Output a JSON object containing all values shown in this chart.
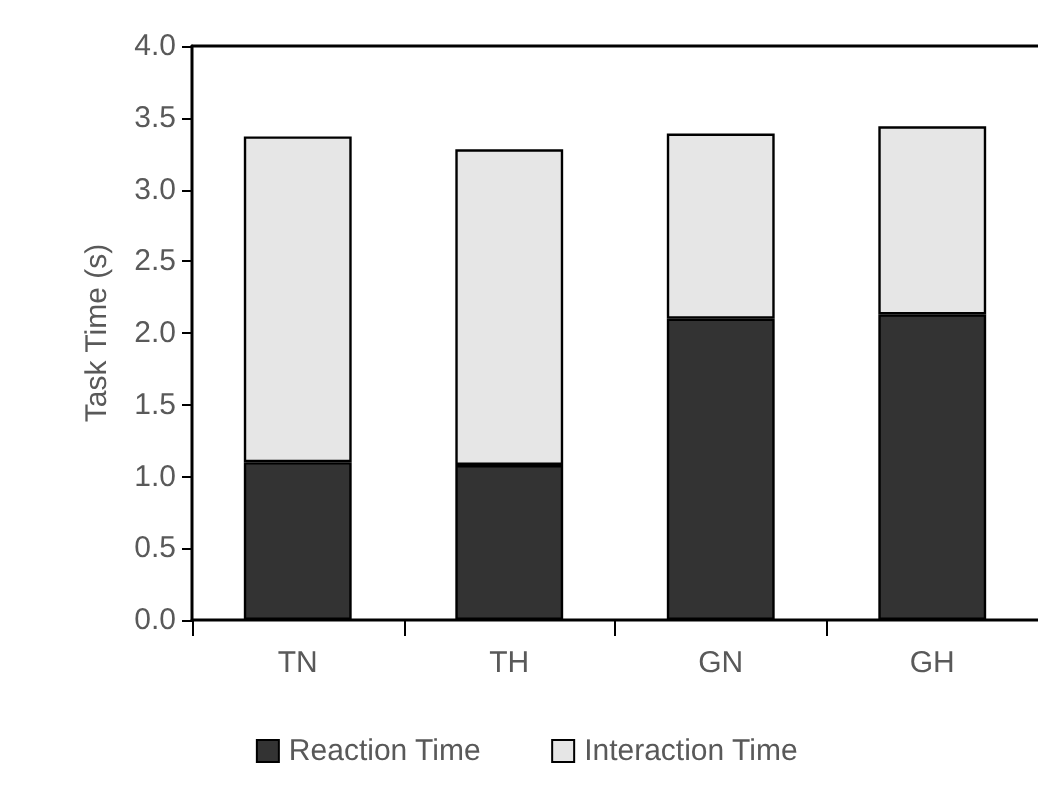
{
  "chart_data": {
    "type": "bar",
    "stacked": true,
    "ylabel": "Task Time (s)",
    "categories": [
      "TN",
      "TH",
      "GN",
      "GH"
    ],
    "series": [
      {
        "name": "Reaction Time",
        "color": "#333333",
        "values": [
          1.1,
          1.08,
          2.1,
          2.13
        ]
      },
      {
        "name": "Interaction Time",
        "color": "#e6e6e6",
        "values": [
          2.27,
          2.2,
          1.29,
          1.31
        ]
      }
    ],
    "ylim": [
      0,
      4
    ],
    "yticks": [
      {
        "value": 0,
        "label": "0.0"
      },
      0.5,
      {
        "value": 1,
        "label": "1.0"
      },
      1.5,
      {
        "value": 2,
        "label": "2.0"
      },
      2.5,
      {
        "value": 3,
        "label": "3.0"
      },
      3.5,
      {
        "value": 4,
        "label": "4.0"
      }
    ],
    "grid": false,
    "legend": "bottom"
  }
}
